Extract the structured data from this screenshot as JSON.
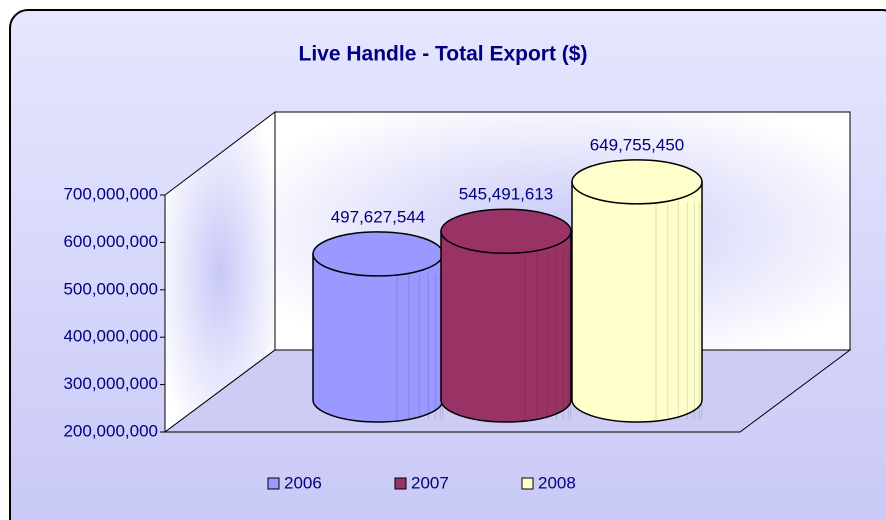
{
  "chart_data": {
    "type": "bar3d",
    "title": "Live Handle - Total Export ($)",
    "categories": [
      "2006",
      "2007",
      "2008"
    ],
    "series": [
      {
        "name": "2006",
        "color": "#9999ff",
        "values": [
          497627544,
          null,
          null
        ],
        "value_labels": [
          "497,627,544",
          null,
          null
        ]
      },
      {
        "name": "2007",
        "color": "#993366",
        "values": [
          null,
          545491613,
          null
        ],
        "value_labels": [
          null,
          "545,491,613",
          null
        ]
      },
      {
        "name": "2008",
        "color": "#ffffcc",
        "values": [
          null,
          null,
          649755450
        ],
        "value_labels": [
          null,
          null,
          "649,755,450"
        ]
      }
    ],
    "ylim": [
      200000000,
      700000000
    ],
    "yticks": [
      {
        "value": 200000000,
        "label": "200,000,000"
      },
      {
        "value": 300000000,
        "label": "300,000,000"
      },
      {
        "value": 400000000,
        "label": "400,000,000"
      },
      {
        "value": 500000000,
        "label": "500,000,000"
      },
      {
        "value": 600000000,
        "label": "600,000,000"
      },
      {
        "value": 700000000,
        "label": "700,000,000"
      }
    ],
    "grid": false,
    "legend": "bottom"
  }
}
